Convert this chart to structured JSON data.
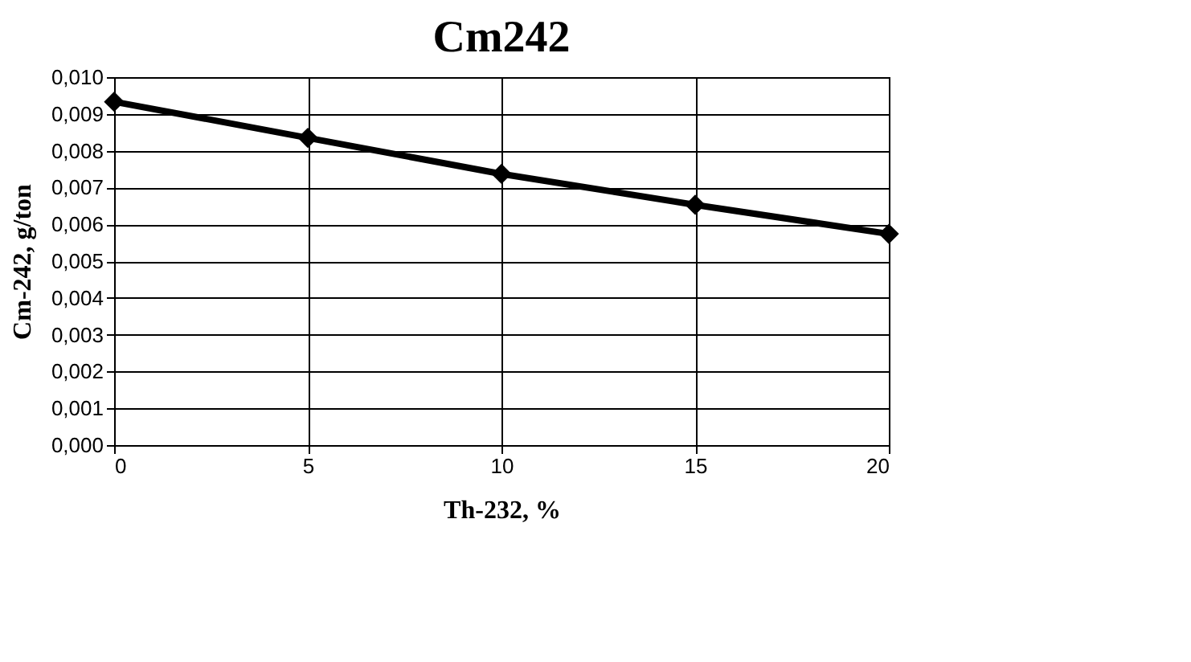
{
  "chart_data": {
    "type": "line",
    "title": "Cm242",
    "xlabel": "Th-232, %",
    "ylabel": "Cm-242,  g/ton",
    "x": [
      0,
      5,
      10,
      15,
      20
    ],
    "series": [
      {
        "color": "#000000",
        "values": [
          0.00933,
          0.00835,
          0.00737,
          0.00653,
          0.00574
        ]
      }
    ],
    "xlim": [
      0,
      20
    ],
    "xticks": [
      0,
      5,
      10,
      15,
      20
    ],
    "ylim": [
      0,
      0.01
    ],
    "yticks": [
      {
        "value": 0,
        "label": "0,000"
      },
      {
        "value": 0.001,
        "label": "0,001"
      },
      {
        "value": 0.002,
        "label": "0,002"
      },
      {
        "value": 0.003,
        "label": "0,003"
      },
      {
        "value": 0.004,
        "label": "0,004"
      },
      {
        "value": 0.005,
        "label": "0,005"
      },
      {
        "value": 0.006,
        "label": "0,006"
      },
      {
        "value": 0.007,
        "label": "0,007"
      },
      {
        "value": 0.008,
        "label": "0,008"
      },
      {
        "value": 0.009,
        "label": "0,009"
      },
      {
        "value": 0.01,
        "label": "0,010"
      }
    ],
    "grid": true,
    "marker": "diamond",
    "line_style": "solid"
  }
}
